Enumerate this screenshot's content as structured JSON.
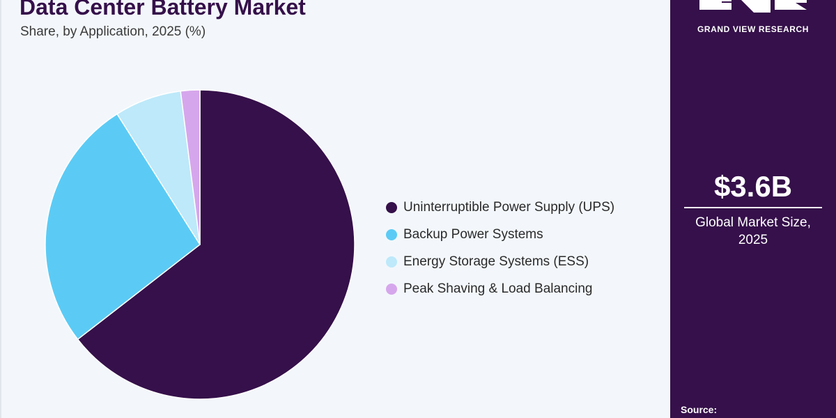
{
  "header": {
    "title": "Data Center Battery Market",
    "subtitle": "Share, by Application, 2025 (%)"
  },
  "chart_data": {
    "type": "pie",
    "title": "Data Center Battery Market",
    "subtitle": "Share, by Application, 2025 (%)",
    "unit": "%",
    "start_angle_deg": 0,
    "direction": "clockwise",
    "legend_position": "right",
    "categories": [
      "Uninterruptible Power Supply (UPS)",
      "Backup Power Systems",
      "Energy Storage Systems (ESS)",
      "Peak Shaving & Load Balancing"
    ],
    "values": [
      64.5,
      26.5,
      7,
      2
    ],
    "colors": [
      "#35104a",
      "#5bcbf5",
      "#bde9fa",
      "#d6a6ec"
    ]
  },
  "sidebar": {
    "brand": "GRAND VIEW RESEARCH",
    "market_value": "$3.6B",
    "market_label_line1": "Global Market Size,",
    "market_label_line2": "2025",
    "source_label": "Source:"
  },
  "icons": {
    "logo": "gvr-logo-icon"
  }
}
